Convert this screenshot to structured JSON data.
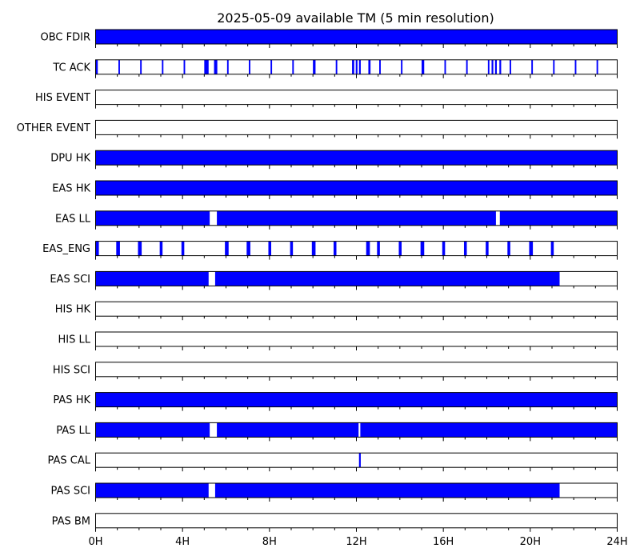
{
  "chart_data": {
    "type": "timeline",
    "title": "2025-05-09 available TM (5 min resolution)",
    "x_unit": "hour",
    "xlim": [
      0,
      24
    ],
    "x_ticks": [
      0,
      4,
      8,
      12,
      16,
      20,
      24
    ],
    "x_tick_labels": [
      "0H",
      "4H",
      "8H",
      "12H",
      "16H",
      "20H",
      "24H"
    ],
    "minor_tick_step": 1,
    "bar_color": "#0000ff",
    "rows": [
      {
        "label": "OBC FDIR",
        "intervals": [
          [
            0,
            24
          ]
        ]
      },
      {
        "label": "TC ACK",
        "intervals": [
          [
            0.0,
            0.1
          ],
          [
            1.05,
            1.12
          ],
          [
            2.05,
            2.12
          ],
          [
            3.05,
            3.12
          ],
          [
            4.05,
            4.12
          ],
          [
            5.0,
            5.2
          ],
          [
            5.45,
            5.6
          ],
          [
            6.05,
            6.12
          ],
          [
            7.05,
            7.12
          ],
          [
            8.05,
            8.12
          ],
          [
            9.05,
            9.12
          ],
          [
            10.0,
            10.12
          ],
          [
            11.05,
            11.12
          ],
          [
            11.8,
            11.9
          ],
          [
            11.97,
            12.05
          ],
          [
            12.12,
            12.2
          ],
          [
            12.55,
            12.65
          ],
          [
            13.05,
            13.12
          ],
          [
            14.05,
            14.12
          ],
          [
            15.0,
            15.12
          ],
          [
            16.05,
            16.12
          ],
          [
            17.05,
            17.12
          ],
          [
            18.05,
            18.12
          ],
          [
            18.22,
            18.3
          ],
          [
            18.38,
            18.46
          ],
          [
            18.58,
            18.66
          ],
          [
            19.05,
            19.12
          ],
          [
            20.05,
            20.12
          ],
          [
            21.05,
            21.12
          ],
          [
            22.05,
            22.12
          ],
          [
            23.05,
            23.12
          ]
        ]
      },
      {
        "label": "HIS EVENT",
        "intervals": []
      },
      {
        "label": "OTHER EVENT",
        "intervals": []
      },
      {
        "label": "DPU HK",
        "intervals": [
          [
            0,
            24
          ]
        ]
      },
      {
        "label": "EAS HK",
        "intervals": [
          [
            0,
            24
          ]
        ]
      },
      {
        "label": "EAS LL",
        "intervals": [
          [
            0,
            5.25
          ],
          [
            5.58,
            18.42
          ],
          [
            18.6,
            24
          ]
        ]
      },
      {
        "label": "EAS_ENG",
        "intervals": [
          [
            0.0,
            0.15
          ],
          [
            0.95,
            1.12
          ],
          [
            1.95,
            2.12
          ],
          [
            2.95,
            3.08
          ],
          [
            3.95,
            4.08
          ],
          [
            5.95,
            6.12
          ],
          [
            6.95,
            7.12
          ],
          [
            7.95,
            8.08
          ],
          [
            8.95,
            9.08
          ],
          [
            9.95,
            10.12
          ],
          [
            10.95,
            11.08
          ],
          [
            12.45,
            12.62
          ],
          [
            12.95,
            13.08
          ],
          [
            13.95,
            14.08
          ],
          [
            14.95,
            15.12
          ],
          [
            15.95,
            16.08
          ],
          [
            16.95,
            17.08
          ],
          [
            17.95,
            18.08
          ],
          [
            18.95,
            19.08
          ],
          [
            19.95,
            20.12
          ],
          [
            20.95,
            21.08
          ]
        ]
      },
      {
        "label": "EAS SCI",
        "intervals": [
          [
            0,
            5.2
          ],
          [
            5.5,
            21.35
          ]
        ]
      },
      {
        "label": "HIS HK",
        "intervals": []
      },
      {
        "label": "HIS LL",
        "intervals": []
      },
      {
        "label": "HIS SCI",
        "intervals": []
      },
      {
        "label": "PAS HK",
        "intervals": [
          [
            0,
            24
          ]
        ]
      },
      {
        "label": "PAS LL",
        "intervals": [
          [
            0,
            5.25
          ],
          [
            5.58,
            12.1
          ],
          [
            12.18,
            24
          ]
        ]
      },
      {
        "label": "PAS CAL",
        "intervals": [
          [
            12.12,
            12.2
          ]
        ]
      },
      {
        "label": "PAS SCI",
        "intervals": [
          [
            0,
            5.2
          ],
          [
            5.5,
            21.35
          ]
        ]
      },
      {
        "label": "PAS BM",
        "intervals": []
      }
    ]
  }
}
